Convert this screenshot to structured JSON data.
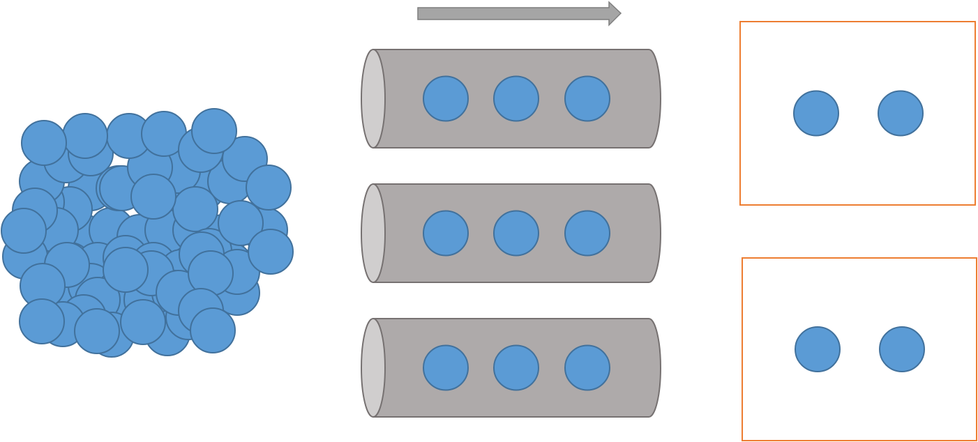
{
  "colors": {
    "ball_fill": "#5b9bd5",
    "ball_stroke": "#41719c",
    "tube_body": "#aeaaaa",
    "tube_end": "#d0cece",
    "tube_stroke": "#767171",
    "arrow_fill": "#a5a5a5",
    "arrow_stroke": "#7f7f7f",
    "box_stroke": "#ed7d31"
  },
  "diagram": {
    "cluster_ball_count": 58,
    "tubes": [
      {
        "name": "tube-1",
        "balls": 3
      },
      {
        "name": "tube-2",
        "balls": 3
      },
      {
        "name": "tube-3",
        "balls": 3
      }
    ],
    "boxes": [
      {
        "name": "box-1",
        "balls": 2
      },
      {
        "name": "box-2",
        "balls": 2
      }
    ],
    "arrow_direction": "right"
  }
}
